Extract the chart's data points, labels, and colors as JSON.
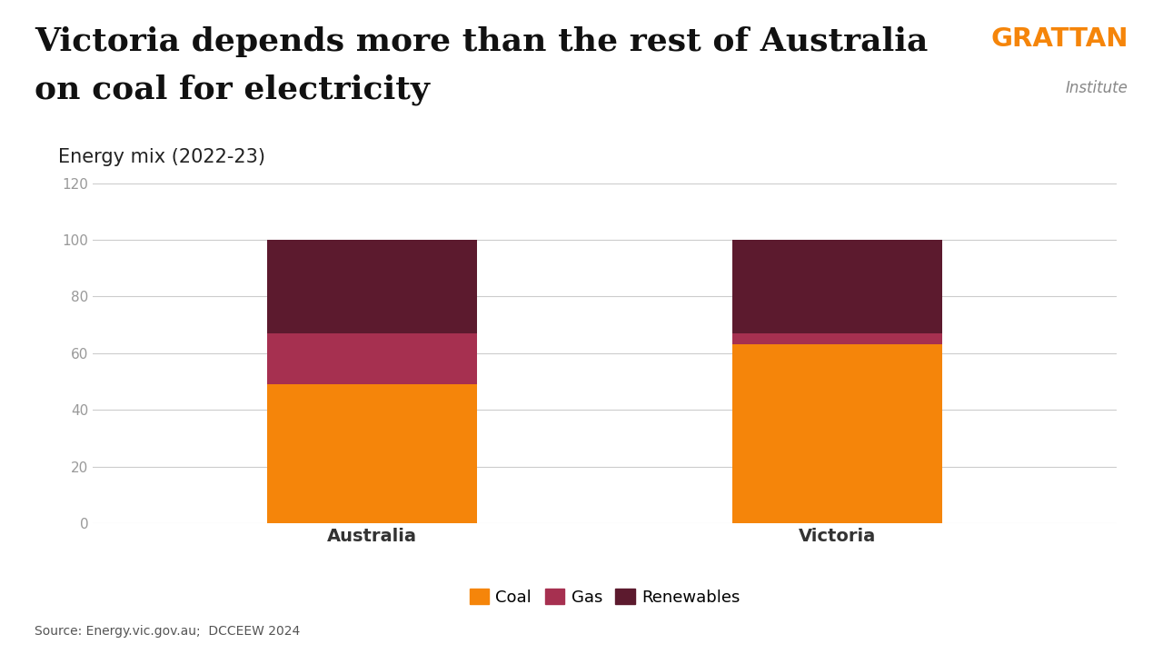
{
  "title_line1": "Victoria depends more than the rest of Australia",
  "title_line2": "on coal for electricity",
  "subtitle": "Energy mix (2022-23)",
  "source": "Source: Energy.vic.gov.au;  DCCEEW 2024",
  "categories": [
    "Australia",
    "Victoria"
  ],
  "coal": [
    49,
    63
  ],
  "gas": [
    18,
    4
  ],
  "renewables": [
    33,
    33
  ],
  "coal_color": "#F5850A",
  "gas_color": "#A63050",
  "renewables_color": "#5C1A2E",
  "header_color": "#ECEAE8",
  "body_color": "#FFFFFF",
  "title_fontsize": 26,
  "subtitle_fontsize": 15,
  "ylabel_max": 120,
  "yticks": [
    0,
    20,
    40,
    60,
    80,
    100,
    120
  ],
  "bar_width": 0.45,
  "grattan_orange": "#F5850A",
  "grattan_gray": "#888888",
  "tick_color": "#999999",
  "grid_color": "#CCCCCC",
  "x_label_color": "#333333",
  "legend_labels": [
    "Coal",
    "Gas",
    "Renewables"
  ]
}
